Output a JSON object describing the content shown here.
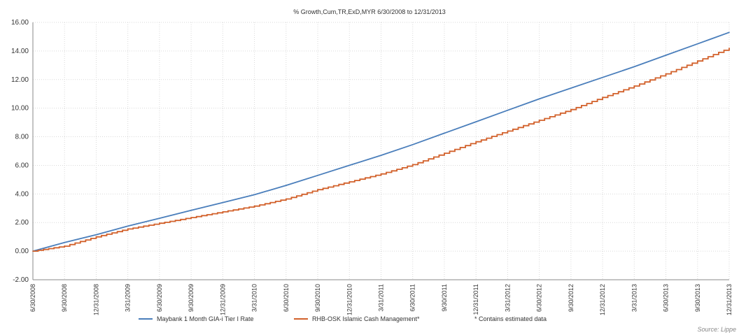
{
  "chart_data": {
    "type": "line",
    "title": "% Growth,Cum,TR,ExD,MYR 6/30/2008 to 12/31/2013",
    "xlabel": "",
    "ylabel": "",
    "ylim": [
      -2,
      16
    ],
    "y_ticks": [
      "16.00",
      "14.00",
      "12.00",
      "10.00",
      "8.00",
      "6.00",
      "4.00",
      "2.00",
      "0.00",
      "-2.00"
    ],
    "x_ticks": [
      "6/30/2008",
      "9/30/2008",
      "12/31/2008",
      "3/31/2009",
      "6/30/2009",
      "9/30/2009",
      "12/31/2009",
      "3/31/2010",
      "6/30/2010",
      "9/30/2010",
      "12/31/2010",
      "3/31/2011",
      "6/30/2011",
      "9/30/2011",
      "12/31/2011",
      "3/31/2012",
      "6/30/2012",
      "9/30/2012",
      "12/31/2012",
      "3/31/2013",
      "6/30/2013",
      "9/30/2013",
      "12/31/2013"
    ],
    "grid": true,
    "legend_position": "bottom",
    "series": [
      {
        "name": "Maybank 1 Month GIA-i Tier I Rate",
        "color": "#4a7ebb",
        "x": [
          "6/30/2008",
          "9/30/2008",
          "12/31/2008",
          "3/31/2009",
          "6/30/2009",
          "9/30/2009",
          "12/31/2009",
          "3/31/2010",
          "6/30/2010",
          "9/30/2010",
          "12/31/2010",
          "3/31/2011",
          "6/30/2011",
          "9/30/2011",
          "12/31/2011",
          "3/31/2012",
          "6/30/2012",
          "9/30/2012",
          "12/31/2012",
          "3/31/2013",
          "6/30/2013",
          "9/30/2013",
          "12/31/2013"
        ],
        "values": [
          0.0,
          0.6,
          1.15,
          1.75,
          2.3,
          2.85,
          3.4,
          3.95,
          4.6,
          5.3,
          6.0,
          6.7,
          7.45,
          8.25,
          9.05,
          9.85,
          10.65,
          11.4,
          12.15,
          12.9,
          13.7,
          14.5,
          15.3
        ]
      },
      {
        "name": "RHB-OSK Islamic Cash Management*",
        "color": "#d2612b",
        "x": [
          "6/30/2008",
          "9/30/2008",
          "12/31/2008",
          "3/31/2009",
          "6/30/2009",
          "9/30/2009",
          "12/31/2009",
          "3/31/2010",
          "6/30/2010",
          "9/30/2010",
          "12/31/2010",
          "3/31/2011",
          "6/30/2011",
          "9/30/2011",
          "12/31/2011",
          "3/31/2012",
          "6/30/2012",
          "9/30/2012",
          "12/31/2012",
          "3/31/2013",
          "6/30/2013",
          "9/30/2013",
          "12/31/2013"
        ],
        "values": [
          0.0,
          0.35,
          1.0,
          1.55,
          1.95,
          2.35,
          2.75,
          3.15,
          3.65,
          4.3,
          4.85,
          5.4,
          6.05,
          6.85,
          7.65,
          8.4,
          9.15,
          9.9,
          10.75,
          11.55,
          12.4,
          13.3,
          14.2
        ],
        "step": true
      }
    ],
    "legend_note": "* Contains estimated data",
    "source": "Source: Lippe"
  }
}
